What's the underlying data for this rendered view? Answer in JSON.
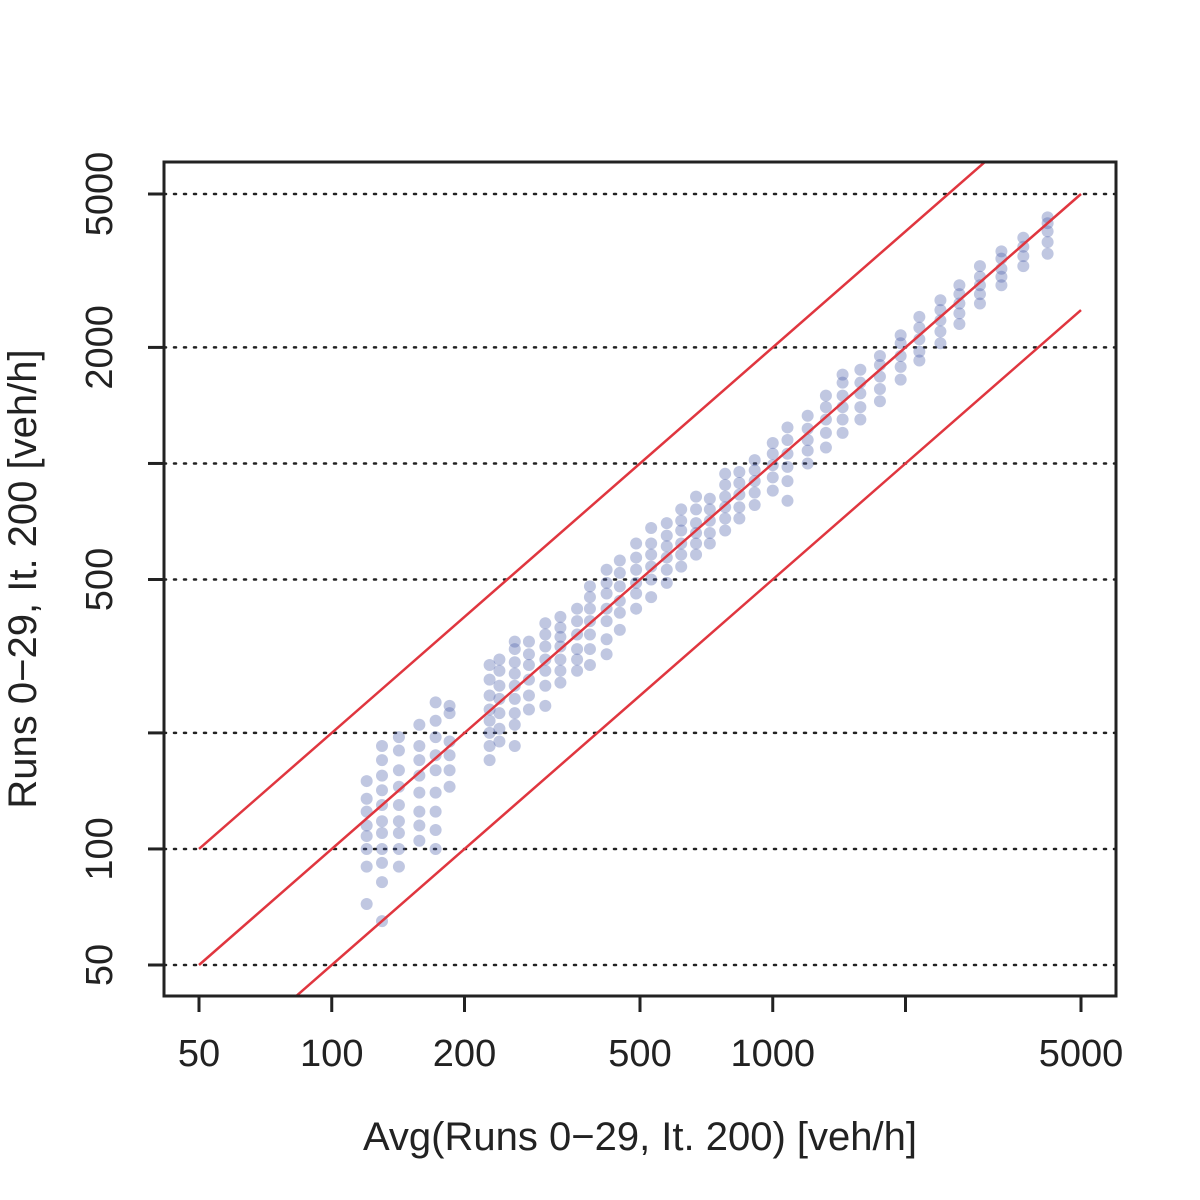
{
  "chart_data": {
    "type": "scatter",
    "title": "",
    "xlabel": "Avg(Runs 0−29, It. 200) [veh/h]",
    "ylabel": "Runs 0−29, It. 200 [veh/h]",
    "x_scale": "log",
    "y_scale": "log",
    "xlim": [
      40,
      6000
    ],
    "ylim": [
      40,
      6000
    ],
    "x_ticks": [
      50,
      100,
      200,
      500,
      1000,
      2000,
      5000
    ],
    "x_tick_labels": [
      "50",
      "100",
      "200",
      "500",
      "1000",
      "",
      "5000"
    ],
    "y_ticks": [
      50,
      100,
      200,
      500,
      1000,
      2000,
      5000
    ],
    "y_tick_labels": [
      "50",
      "100",
      "",
      "500",
      "",
      "2000",
      "5000"
    ],
    "grid": "horizontal-dotted",
    "point_color": "#4a5ea8",
    "line_color": "#e0363f",
    "reference_lines": [
      {
        "factor": 2,
        "x": [
          50,
          3300
        ]
      },
      {
        "factor": 1,
        "x": [
          50,
          5000
        ]
      },
      {
        "factor": 0.5,
        "x": [
          82,
          5000
        ]
      }
    ],
    "clusters": [
      {
        "x": 120,
        "y": [
          72,
          90,
          100,
          108,
          115,
          125,
          135,
          150
        ]
      },
      {
        "x": 130,
        "y": [
          65,
          82,
          92,
          100,
          110,
          118,
          130,
          142,
          155,
          170,
          185
        ]
      },
      {
        "x": 142,
        "y": [
          90,
          100,
          110,
          118,
          130,
          145,
          160,
          180,
          195
        ]
      },
      {
        "x": 158,
        "y": [
          105,
          115,
          125,
          140,
          155,
          170,
          185,
          210
        ]
      },
      {
        "x": 172,
        "y": [
          100,
          112,
          125,
          140,
          160,
          175,
          195,
          215,
          240
        ]
      },
      {
        "x": 185,
        "y": [
          145,
          160,
          175,
          190,
          225,
          235
        ]
      },
      {
        "x": 228,
        "y": [
          170,
          185,
          200,
          215,
          230,
          250,
          275,
          300
        ]
      },
      {
        "x": 240,
        "y": [
          190,
          205,
          225,
          245,
          265,
          290,
          310
        ]
      },
      {
        "x": 260,
        "y": [
          185,
          210,
          225,
          245,
          265,
          285,
          305,
          330,
          345
        ]
      },
      {
        "x": 280,
        "y": [
          230,
          250,
          275,
          300,
          320,
          345
        ]
      },
      {
        "x": 305,
        "y": [
          235,
          265,
          290,
          310,
          335,
          360,
          385
        ]
      },
      {
        "x": 330,
        "y": [
          270,
          290,
          310,
          335,
          355,
          375,
          400
        ]
      },
      {
        "x": 360,
        "y": [
          290,
          310,
          330,
          360,
          390,
          420
        ]
      },
      {
        "x": 385,
        "y": [
          300,
          330,
          360,
          390,
          420,
          450,
          480
        ]
      },
      {
        "x": 420,
        "y": [
          320,
          350,
          390,
          420,
          460,
          490,
          530
        ]
      },
      {
        "x": 450,
        "y": [
          370,
          410,
          440,
          480,
          520,
          560
        ]
      },
      {
        "x": 490,
        "y": [
          420,
          460,
          490,
          530,
          570,
          620
        ]
      },
      {
        "x": 530,
        "y": [
          450,
          500,
          540,
          580,
          620,
          680
        ]
      },
      {
        "x": 575,
        "y": [
          490,
          530,
          570,
          610,
          650,
          700
        ]
      },
      {
        "x": 620,
        "y": [
          540,
          580,
          620,
          670,
          710,
          760
        ]
      },
      {
        "x": 670,
        "y": [
          580,
          620,
          660,
          700,
          760,
          820
        ]
      },
      {
        "x": 720,
        "y": [
          620,
          660,
          710,
          760,
          810
        ]
      },
      {
        "x": 780,
        "y": [
          670,
          720,
          770,
          820,
          880,
          940
        ]
      },
      {
        "x": 840,
        "y": [
          720,
          770,
          830,
          890,
          950
        ]
      },
      {
        "x": 910,
        "y": [
          780,
          840,
          900,
          960,
          1020
        ]
      },
      {
        "x": 1000,
        "y": [
          850,
          920,
          990,
          1060,
          1130
        ]
      },
      {
        "x": 1080,
        "y": [
          800,
          900,
          980,
          1060,
          1150,
          1240
        ]
      },
      {
        "x": 1200,
        "y": [
          1000,
          1080,
          1150,
          1230,
          1330
        ]
      },
      {
        "x": 1320,
        "y": [
          1100,
          1200,
          1300,
          1400,
          1500
        ]
      },
      {
        "x": 1440,
        "y": [
          1200,
          1300,
          1400,
          1500,
          1620,
          1700
        ]
      },
      {
        "x": 1580,
        "y": [
          1300,
          1400,
          1520,
          1620,
          1750
        ]
      },
      {
        "x": 1750,
        "y": [
          1450,
          1560,
          1680,
          1800,
          1900
        ]
      },
      {
        "x": 1950,
        "y": [
          1650,
          1780,
          1900,
          2050,
          2150
        ]
      },
      {
        "x": 2150,
        "y": [
          1850,
          1950,
          2100,
          2250,
          2400
        ]
      },
      {
        "x": 2400,
        "y": [
          2050,
          2200,
          2350,
          2500,
          2650
        ]
      },
      {
        "x": 2650,
        "y": [
          2300,
          2450,
          2600,
          2750,
          2900
        ]
      },
      {
        "x": 2950,
        "y": [
          2600,
          2750,
          2900,
          3050,
          3250
        ]
      },
      {
        "x": 3300,
        "y": [
          2900,
          3050,
          3200,
          3400,
          3550
        ]
      },
      {
        "x": 3700,
        "y": [
          3250,
          3450,
          3650,
          3850
        ]
      },
      {
        "x": 4200,
        "y": [
          3500,
          3750,
          4000,
          4200,
          4350
        ]
      }
    ]
  }
}
